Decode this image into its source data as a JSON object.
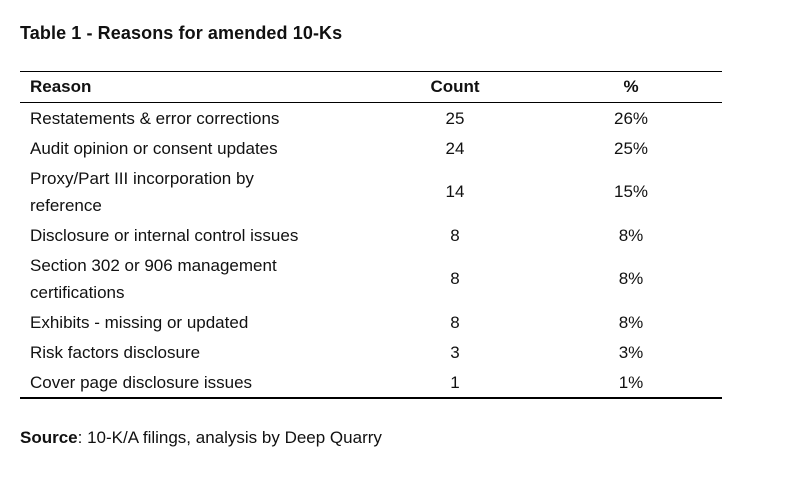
{
  "chart_data": {
    "type": "table",
    "title": "Table 1 - Reasons for amended 10-Ks",
    "columns": [
      "Reason",
      "Count",
      "%"
    ],
    "rows": [
      [
        "Restatements & error corrections",
        "25",
        "26%"
      ],
      [
        "Audit opinion or consent updates",
        "24",
        "25%"
      ],
      [
        "Proxy/Part III incorporation by\nreference",
        "14",
        "15%"
      ],
      [
        "Disclosure or internal control issues",
        "8",
        "8%"
      ],
      [
        "Section 302 or 906 management\ncertifications",
        "8",
        "8%"
      ],
      [
        "Exhibits - missing or updated",
        "8",
        "8%"
      ],
      [
        "Risk factors disclosure",
        "3",
        "3%"
      ],
      [
        "Cover page disclosure issues",
        "1",
        "1%"
      ]
    ],
    "counts": [
      25,
      24,
      14,
      8,
      8,
      8,
      3,
      1
    ],
    "percentages": [
      26,
      25,
      15,
      8,
      8,
      8,
      3,
      1
    ],
    "source_label": "Source",
    "source_text": ": 10-K/A filings, analysis by Deep Quarry"
  },
  "colors": {
    "text": "#111111",
    "rule": "#000000",
    "background": "#ffffff"
  }
}
